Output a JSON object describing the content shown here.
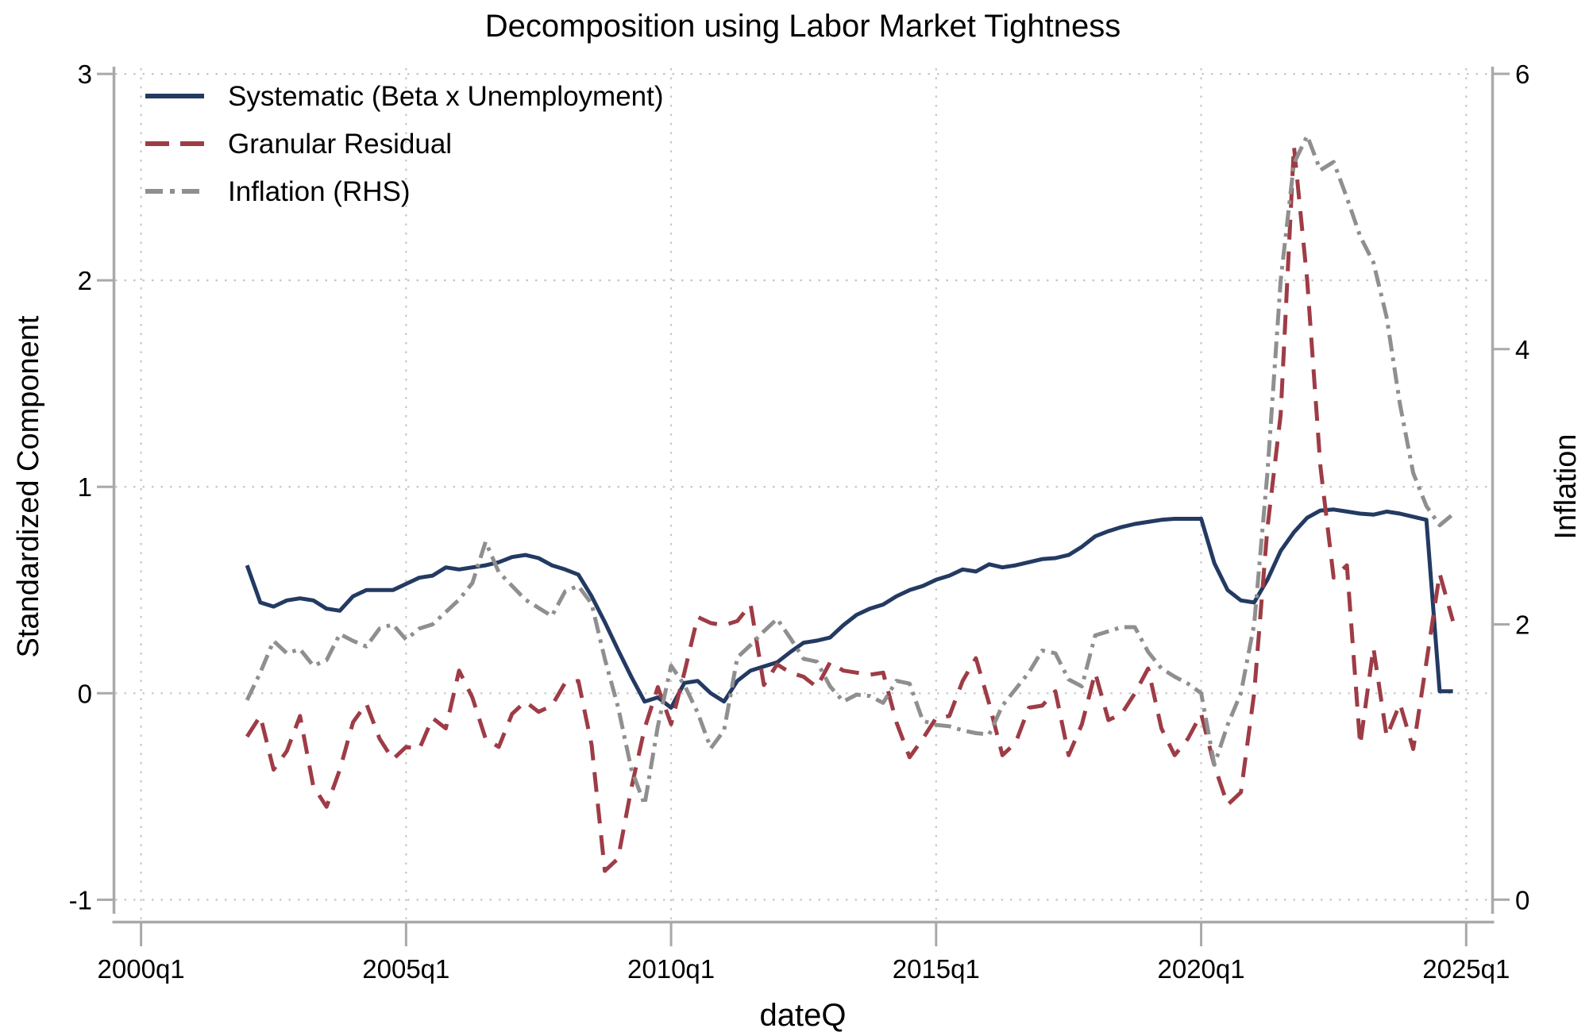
{
  "title": "Decomposition using Labor Market Tightness",
  "colors": {
    "systematic": "#233a62",
    "granular": "#9e3c46",
    "inflation": "#8f8f8f",
    "gridline": "#c6c6c6",
    "axis": "#a9a9a9",
    "text": "#000000",
    "background": "#ffffff"
  },
  "axes": {
    "left": {
      "title": "Standardized Component",
      "ticks": [
        3,
        2,
        1,
        0,
        -1
      ],
      "range": [
        -1,
        3
      ]
    },
    "right": {
      "title": "Inflation",
      "ticks": [
        6,
        4,
        2,
        0
      ],
      "range": [
        0,
        6
      ]
    },
    "x": {
      "title": "dateQ",
      "tick_labels": [
        "2000q1",
        "2005q1",
        "2010q1",
        "2015q1",
        "2020q1",
        "2025q1"
      ],
      "tick_quarter_index": [
        0,
        20,
        40,
        60,
        80,
        100
      ]
    }
  },
  "legend": {
    "items": [
      {
        "label": "Systematic (Beta x Unemployment)",
        "series": "systematic",
        "style": "solid"
      },
      {
        "label": "Granular Residual",
        "series": "granular",
        "style": "dashed"
      },
      {
        "label": "Inflation (RHS)",
        "series": "inflation",
        "style": "dash-dot"
      }
    ]
  },
  "chart_data": {
    "type": "line",
    "frequency": "quarterly",
    "x_range_shown": [
      "2000q1",
      "2025q1"
    ],
    "grid": "dotted",
    "legend_position": "top-left-inside",
    "x": [
      "2002q1",
      "2002q2",
      "2002q3",
      "2002q4",
      "2003q1",
      "2003q2",
      "2003q3",
      "2003q4",
      "2004q1",
      "2004q2",
      "2004q3",
      "2004q4",
      "2005q1",
      "2005q2",
      "2005q3",
      "2005q4",
      "2006q1",
      "2006q2",
      "2006q3",
      "2006q4",
      "2007q1",
      "2007q2",
      "2007q3",
      "2007q4",
      "2008q1",
      "2008q2",
      "2008q3",
      "2008q4",
      "2009q1",
      "2009q2",
      "2009q3",
      "2009q4",
      "2010q1",
      "2010q2",
      "2010q3",
      "2010q4",
      "2011q1",
      "2011q2",
      "2011q3",
      "2011q4",
      "2012q1",
      "2012q2",
      "2012q3",
      "2012q4",
      "2013q1",
      "2013q2",
      "2013q3",
      "2013q4",
      "2014q1",
      "2014q2",
      "2014q3",
      "2014q4",
      "2015q1",
      "2015q2",
      "2015q3",
      "2015q4",
      "2016q1",
      "2016q2",
      "2016q3",
      "2016q4",
      "2017q1",
      "2017q2",
      "2017q3",
      "2017q4",
      "2018q1",
      "2018q2",
      "2018q3",
      "2018q4",
      "2019q1",
      "2019q2",
      "2019q3",
      "2019q4",
      "2020q1",
      "2020q2",
      "2020q3",
      "2020q4",
      "2021q1",
      "2021q2",
      "2021q3",
      "2021q4",
      "2022q1",
      "2022q2",
      "2022q3",
      "2022q4",
      "2023q1",
      "2023q2",
      "2023q3",
      "2023q4",
      "2024q1",
      "2024q2",
      "2024q3",
      "2024q4"
    ],
    "series": [
      {
        "name": "Systematic (Beta x Unemployment)",
        "axis": "left",
        "style": "solid",
        "color": "#233a62",
        "values": [
          0.62,
          0.44,
          0.42,
          0.45,
          0.46,
          0.45,
          0.41,
          0.4,
          0.47,
          0.5,
          0.5,
          0.5,
          0.53,
          0.56,
          0.57,
          0.61,
          0.6,
          0.61,
          0.62,
          0.635,
          0.66,
          0.67,
          0.655,
          0.62,
          0.6,
          0.575,
          0.47,
          0.345,
          0.21,
          0.08,
          -0.04,
          -0.02,
          -0.07,
          0.05,
          0.06,
          0.0,
          -0.04,
          0.06,
          0.11,
          0.13,
          0.15,
          0.2,
          0.245,
          0.255,
          0.27,
          0.33,
          0.38,
          0.41,
          0.43,
          0.47,
          0.5,
          0.52,
          0.55,
          0.57,
          0.6,
          0.59,
          0.625,
          0.61,
          0.62,
          0.635,
          0.65,
          0.655,
          0.67,
          0.71,
          0.76,
          0.785,
          0.805,
          0.82,
          0.83,
          0.84,
          0.845,
          0.845,
          0.845,
          0.63,
          0.5,
          0.45,
          0.44,
          0.55,
          0.69,
          0.78,
          0.85,
          0.885,
          0.89,
          0.88,
          0.87,
          0.865,
          0.88,
          0.87,
          0.855,
          0.84,
          0.01,
          0.01
        ]
      },
      {
        "name": "Granular Residual",
        "axis": "left",
        "style": "dashed",
        "color": "#9e3c46",
        "values": [
          -0.21,
          -0.11,
          -0.37,
          -0.28,
          -0.11,
          -0.45,
          -0.55,
          -0.37,
          -0.14,
          -0.05,
          -0.22,
          -0.32,
          -0.26,
          -0.27,
          -0.12,
          -0.17,
          0.11,
          -0.02,
          -0.22,
          -0.26,
          -0.1,
          -0.04,
          -0.09,
          -0.06,
          0.05,
          0.06,
          -0.25,
          -0.86,
          -0.8,
          -0.46,
          -0.17,
          0.03,
          -0.15,
          0.1,
          0.37,
          0.34,
          0.33,
          0.35,
          0.43,
          0.04,
          0.14,
          0.1,
          0.08,
          0.03,
          0.15,
          0.11,
          0.1,
          0.09,
          0.1,
          -0.14,
          -0.31,
          -0.22,
          -0.12,
          -0.11,
          0.06,
          0.17,
          -0.05,
          -0.3,
          -0.24,
          -0.07,
          -0.06,
          0.01,
          -0.3,
          -0.15,
          0.1,
          -0.13,
          -0.1,
          0.0,
          0.12,
          -0.17,
          -0.3,
          -0.22,
          -0.1,
          -0.35,
          -0.54,
          -0.48,
          0.0,
          0.8,
          1.35,
          2.65,
          2.0,
          1.1,
          0.56,
          0.62,
          -0.25,
          0.22,
          -0.21,
          -0.05,
          -0.27,
          0.15,
          0.58,
          0.35
        ]
      },
      {
        "name": "Inflation (RHS)",
        "axis": "right",
        "style": "dash-dot",
        "color": "#8f8f8f",
        "values": [
          1.45,
          1.65,
          1.88,
          1.79,
          1.82,
          1.7,
          1.74,
          1.93,
          1.88,
          1.84,
          1.97,
          2.0,
          1.89,
          1.97,
          2.0,
          2.09,
          2.18,
          2.3,
          2.6,
          2.38,
          2.28,
          2.18,
          2.12,
          2.06,
          2.24,
          2.28,
          2.15,
          1.75,
          1.4,
          0.95,
          0.69,
          1.26,
          1.7,
          1.56,
          1.36,
          1.1,
          1.23,
          1.76,
          1.85,
          1.95,
          2.04,
          1.9,
          1.75,
          1.73,
          1.55,
          1.44,
          1.49,
          1.48,
          1.43,
          1.59,
          1.57,
          1.3,
          1.27,
          1.26,
          1.23,
          1.21,
          1.2,
          1.41,
          1.53,
          1.65,
          1.81,
          1.79,
          1.6,
          1.55,
          1.92,
          1.95,
          1.98,
          1.98,
          1.8,
          1.68,
          1.62,
          1.57,
          1.5,
          0.98,
          1.27,
          1.5,
          2.0,
          3.1,
          4.5,
          5.35,
          5.55,
          5.3,
          5.36,
          5.1,
          4.82,
          4.63,
          4.23,
          3.6,
          3.1,
          2.86,
          2.72,
          2.8
        ]
      }
    ]
  }
}
